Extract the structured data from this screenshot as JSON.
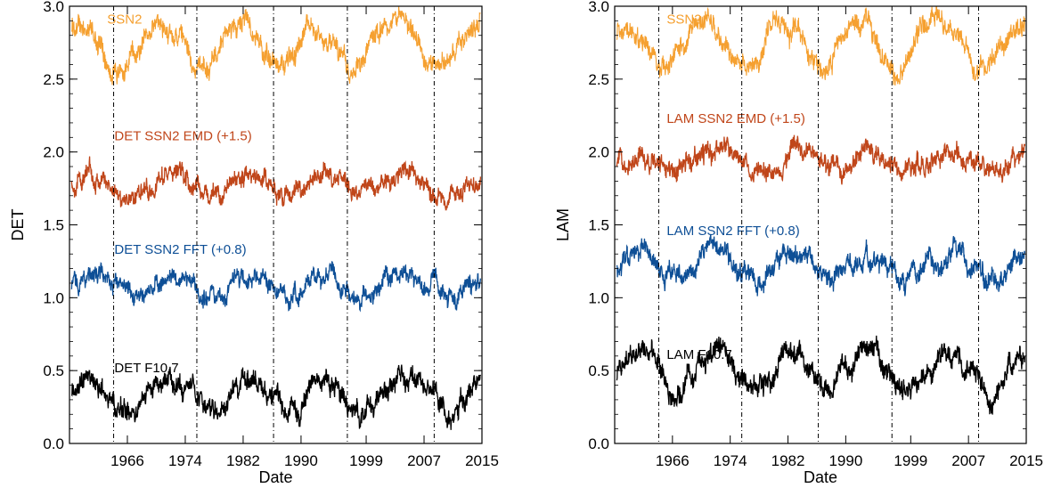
{
  "chart_data": [
    {
      "type": "line",
      "xlabel": "Date",
      "ylabel": "DET",
      "xlim": [
        1958,
        2015
      ],
      "ylim": [
        0.0,
        3.0
      ],
      "xticks": [
        1966,
        1974,
        1982,
        1990,
        1999,
        2007,
        2015
      ],
      "yticks": [
        "0.0",
        "0.5",
        "1.0",
        "1.5",
        "2.0",
        "2.5",
        "3.0"
      ],
      "vlines": [
        1964.1,
        1975.6,
        1986.2,
        1996.4,
        2008.4
      ],
      "grid": false,
      "series": [
        {
          "name": "SSN2",
          "color": "#f5a030",
          "base": 2.62,
          "amp": 0.16,
          "noise": 0.1,
          "lag": 0,
          "label_pos": [
            1963.2,
            2.88
          ]
        },
        {
          "name": "DET SSN2 EMD (+1.5)",
          "color": "#c0461a",
          "base": 1.72,
          "amp": 0.08,
          "noise": 0.08,
          "lag": 1.5,
          "label_pos": [
            1964.2,
            2.08
          ]
        },
        {
          "name": "DET SSN2 FFT (+0.8)",
          "color": "#0e4f96",
          "base": 1.03,
          "amp": 0.08,
          "noise": 0.08,
          "lag": 1.5,
          "label_pos": [
            1964.2,
            1.3
          ]
        },
        {
          "name": "DET F10.7",
          "color": "#000000",
          "base": 0.25,
          "amp": 0.12,
          "noise": 0.1,
          "lag": 1.5,
          "label_pos": [
            1964.2,
            0.49
          ]
        }
      ]
    },
    {
      "type": "line",
      "xlabel": "Date",
      "ylabel": "LAM",
      "xlim": [
        1958,
        2015
      ],
      "ylim": [
        0.0,
        3.0
      ],
      "xticks": [
        1966,
        1974,
        1982,
        1990,
        1999,
        2007,
        2015
      ],
      "yticks": [
        "0.0",
        "0.5",
        "1.0",
        "1.5",
        "2.0",
        "2.5",
        "3.0"
      ],
      "vlines": [
        1964.1,
        1975.6,
        1986.2,
        1996.4,
        2008.4
      ],
      "grid": false,
      "series": [
        {
          "name": "SSN2",
          "color": "#f5a030",
          "base": 2.62,
          "amp": 0.16,
          "noise": 0.1,
          "lag": 0,
          "label_pos": [
            1965.2,
            2.88
          ]
        },
        {
          "name": "LAM SSN2 EMD (+1.5)",
          "color": "#c0461a",
          "base": 1.88,
          "amp": 0.08,
          "noise": 0.09,
          "lag": 1.5,
          "label_pos": [
            1965.2,
            2.2
          ]
        },
        {
          "name": "LAM SSN2 FFT (+0.8)",
          "color": "#0e4f96",
          "base": 1.17,
          "amp": 0.08,
          "noise": 0.09,
          "lag": 1.5,
          "label_pos": [
            1965.2,
            1.43
          ]
        },
        {
          "name": "LAM F10.7",
          "color": "#000000",
          "base": 0.4,
          "amp": 0.14,
          "noise": 0.1,
          "lag": 1.5,
          "label_pos": [
            1965.2,
            0.58
          ]
        }
      ]
    }
  ]
}
